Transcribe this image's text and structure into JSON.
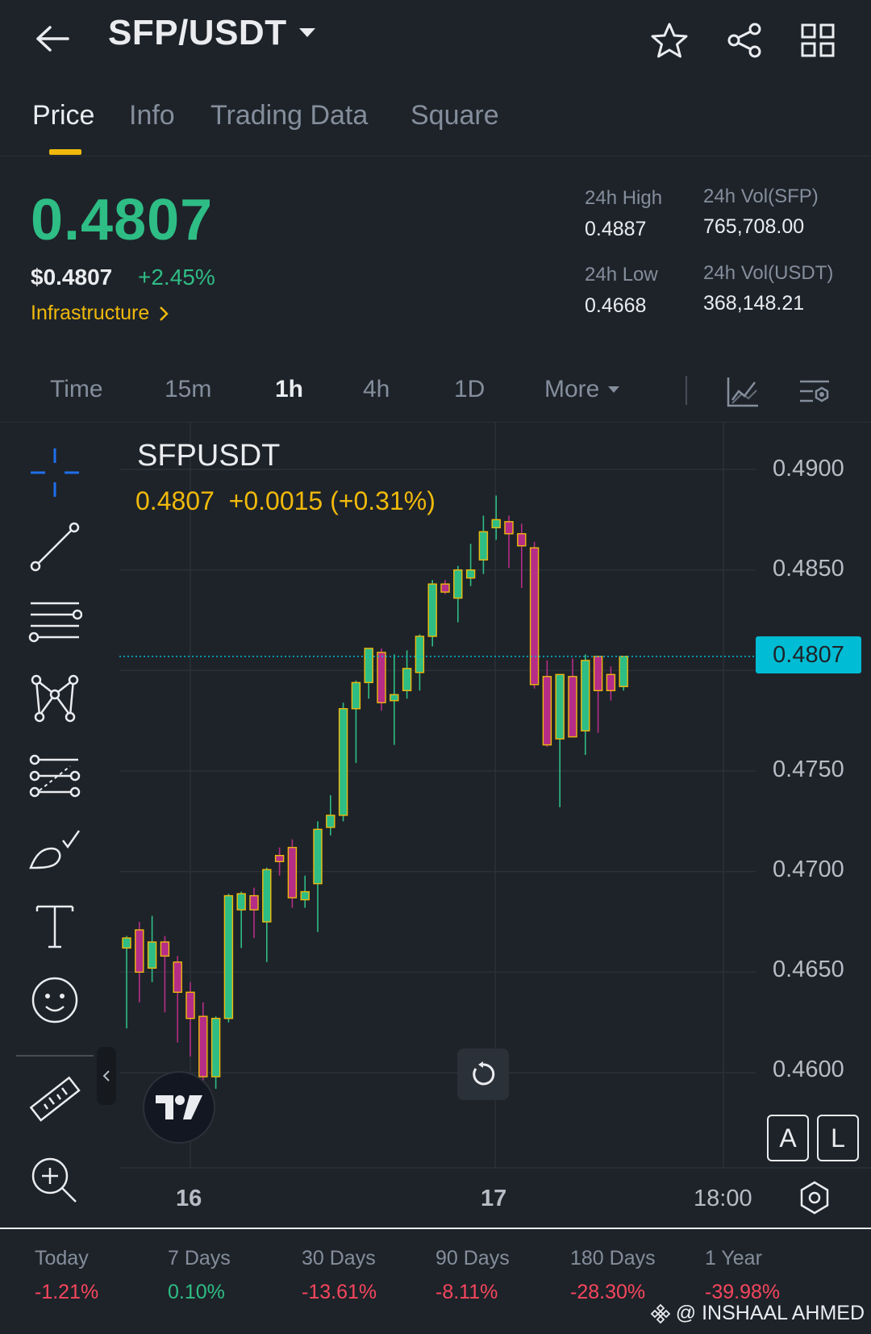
{
  "header": {
    "pair": "SFP/USDT"
  },
  "tabs": [
    "Price",
    "Info",
    "Trading Data",
    "Square"
  ],
  "price": {
    "last": "0.4807",
    "usd": "$0.4807",
    "change": "+2.45%",
    "category": "Infrastructure"
  },
  "stats": {
    "high_label": "24h High",
    "high_value": "0.4887",
    "low_label": "24h Low",
    "low_value": "0.4668",
    "vol_base_label": "24h Vol(SFP)",
    "vol_base_value": "765,708.00",
    "vol_quote_label": "24h Vol(USDT)",
    "vol_quote_value": "368,148.21"
  },
  "intervals": [
    "Time",
    "15m",
    "1h",
    "4h",
    "1D",
    "More"
  ],
  "chart": {
    "symbol": "SFPUSDT",
    "ohlc_line": "0.4807  +0.0015 (+0.31%)",
    "current_price_label": "0.4807",
    "y_ticks": [
      "0.4900",
      "0.4850",
      "0.4750",
      "0.4700",
      "0.4650",
      "0.4600"
    ],
    "x_ticks": [
      "16",
      "17",
      "18:00"
    ],
    "scale_a": "A",
    "scale_l": "L"
  },
  "chart_data": {
    "type": "candlestick",
    "symbol": "SFPUSDT",
    "interval": "1h",
    "ylim": [
      0.4575,
      0.4925
    ],
    "x_ticks": [
      "16",
      "17",
      "18:00"
    ],
    "y_ticks": [
      0.49,
      0.485,
      0.475,
      0.47,
      0.465,
      0.46
    ],
    "last_price": 0.4807,
    "colors": {
      "up": "#2ebd85",
      "down": "#b52d87",
      "wick_up": "#2ebd85",
      "wick_down": "#b52d87",
      "border": "#f0b90b",
      "last_line": "#00bcd4"
    },
    "candles": [
      {
        "o": 0.4662,
        "h": 0.4668,
        "l": 0.4622,
        "c": 0.4667
      },
      {
        "o": 0.4671,
        "h": 0.4675,
        "l": 0.4635,
        "c": 0.465
      },
      {
        "o": 0.4652,
        "h": 0.4678,
        "l": 0.4645,
        "c": 0.4665
      },
      {
        "o": 0.4665,
        "h": 0.4668,
        "l": 0.463,
        "c": 0.4658
      },
      {
        "o": 0.4655,
        "h": 0.4658,
        "l": 0.4615,
        "c": 0.464
      },
      {
        "o": 0.464,
        "h": 0.4645,
        "l": 0.4608,
        "c": 0.4627
      },
      {
        "o": 0.4628,
        "h": 0.4635,
        "l": 0.4595,
        "c": 0.4598
      },
      {
        "o": 0.4598,
        "h": 0.4628,
        "l": 0.4592,
        "c": 0.4627
      },
      {
        "o": 0.4627,
        "h": 0.4689,
        "l": 0.4625,
        "c": 0.4688
      },
      {
        "o": 0.4681,
        "h": 0.469,
        "l": 0.4662,
        "c": 0.4689
      },
      {
        "o": 0.4688,
        "h": 0.4692,
        "l": 0.4667,
        "c": 0.4681
      },
      {
        "o": 0.4675,
        "h": 0.4702,
        "l": 0.4655,
        "c": 0.4701
      },
      {
        "o": 0.4708,
        "h": 0.4712,
        "l": 0.4698,
        "c": 0.4705
      },
      {
        "o": 0.4712,
        "h": 0.4716,
        "l": 0.4682,
        "c": 0.4687
      },
      {
        "o": 0.4686,
        "h": 0.4698,
        "l": 0.4682,
        "c": 0.469
      },
      {
        "o": 0.4694,
        "h": 0.4725,
        "l": 0.467,
        "c": 0.4721
      },
      {
        "o": 0.4722,
        "h": 0.4738,
        "l": 0.4718,
        "c": 0.4728
      },
      {
        "o": 0.4728,
        "h": 0.4784,
        "l": 0.4725,
        "c": 0.4781
      },
      {
        "o": 0.4781,
        "h": 0.4795,
        "l": 0.4754,
        "c": 0.4794
      },
      {
        "o": 0.4794,
        "h": 0.4811,
        "l": 0.4786,
        "c": 0.4811
      },
      {
        "o": 0.4809,
        "h": 0.4811,
        "l": 0.478,
        "c": 0.4784
      },
      {
        "o": 0.4785,
        "h": 0.4808,
        "l": 0.4763,
        "c": 0.4788
      },
      {
        "o": 0.479,
        "h": 0.481,
        "l": 0.4786,
        "c": 0.4801
      },
      {
        "o": 0.4799,
        "h": 0.4818,
        "l": 0.479,
        "c": 0.4817
      },
      {
        "o": 0.4817,
        "h": 0.4845,
        "l": 0.4812,
        "c": 0.4843
      },
      {
        "o": 0.4843,
        "h": 0.4845,
        "l": 0.4838,
        "c": 0.4839
      },
      {
        "o": 0.4836,
        "h": 0.4852,
        "l": 0.4824,
        "c": 0.485
      },
      {
        "o": 0.4846,
        "h": 0.4863,
        "l": 0.4842,
        "c": 0.485
      },
      {
        "o": 0.4855,
        "h": 0.4877,
        "l": 0.4848,
        "c": 0.4869
      },
      {
        "o": 0.4871,
        "h": 0.4887,
        "l": 0.4865,
        "c": 0.4875
      },
      {
        "o": 0.4874,
        "h": 0.4877,
        "l": 0.4851,
        "c": 0.4868
      },
      {
        "o": 0.4868,
        "h": 0.4873,
        "l": 0.4841,
        "c": 0.4862
      },
      {
        "o": 0.4861,
        "h": 0.4864,
        "l": 0.4791,
        "c": 0.4793
      },
      {
        "o": 0.4797,
        "h": 0.4805,
        "l": 0.4762,
        "c": 0.4763
      },
      {
        "o": 0.4766,
        "h": 0.4798,
        "l": 0.4732,
        "c": 0.4798
      },
      {
        "o": 0.4797,
        "h": 0.4806,
        "l": 0.4767,
        "c": 0.4767
      },
      {
        "o": 0.477,
        "h": 0.4808,
        "l": 0.4758,
        "c": 0.4805
      },
      {
        "o": 0.4807,
        "h": 0.4807,
        "l": 0.4769,
        "c": 0.479
      },
      {
        "o": 0.4798,
        "h": 0.4802,
        "l": 0.4785,
        "c": 0.479
      },
      {
        "o": 0.4792,
        "h": 0.4807,
        "l": 0.479,
        "c": 0.4807
      }
    ]
  },
  "performance": [
    {
      "label": "Today",
      "value": "-1.21%",
      "dir": "neg"
    },
    {
      "label": "7 Days",
      "value": "0.10%",
      "dir": "pos"
    },
    {
      "label": "30 Days",
      "value": "-13.61%",
      "dir": "neg"
    },
    {
      "label": "90 Days",
      "value": "-8.11%",
      "dir": "neg"
    },
    {
      "label": "180 Days",
      "value": "-28.30%",
      "dir": "neg"
    },
    {
      "label": "1 Year",
      "value": "-39.98%",
      "dir": "neg"
    }
  ],
  "watermark": "@ INSHAAL AHMED"
}
